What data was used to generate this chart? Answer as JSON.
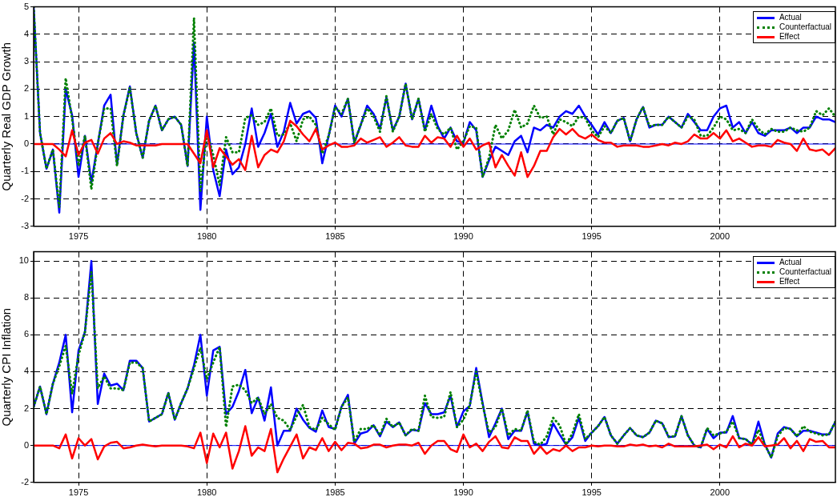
{
  "chart_data": [
    {
      "type": "line",
      "ylabel": "Quarterly Real GDP Growth",
      "xlim": [
        1973.25,
        2004.5
      ],
      "xticks": [
        1975,
        1980,
        1985,
        1990,
        1995,
        2000
      ],
      "ylim": [
        -3,
        5
      ],
      "yticks": [
        -3,
        -2,
        -1,
        0,
        1,
        2,
        3,
        4,
        5
      ],
      "grid": true,
      "legend": "top right",
      "ref_lines": [
        {
          "axis": "y",
          "value": 0,
          "color": "#0000ff"
        }
      ],
      "x": [
        1973.25,
        1973.5,
        1973.75,
        1974,
        1974.25,
        1974.5,
        1974.75,
        1975,
        1975.25,
        1975.5,
        1975.75,
        1976,
        1976.25,
        1976.5,
        1976.75,
        1977,
        1977.25,
        1977.5,
        1977.75,
        1978,
        1978.25,
        1978.5,
        1978.75,
        1979,
        1979.25,
        1979.5,
        1979.75,
        1980,
        1980.25,
        1980.5,
        1980.75,
        1981,
        1981.25,
        1981.5,
        1981.75,
        1982,
        1982.25,
        1982.5,
        1982.75,
        1983,
        1983.25,
        1983.5,
        1983.75,
        1984,
        1984.25,
        1984.5,
        1984.75,
        1985,
        1985.25,
        1985.5,
        1985.75,
        1986,
        1986.25,
        1986.5,
        1986.75,
        1987,
        1987.25,
        1987.5,
        1987.75,
        1988,
        1988.25,
        1988.5,
        1988.75,
        1989,
        1989.25,
        1989.5,
        1989.75,
        1990,
        1990.25,
        1990.5,
        1990.75,
        1991,
        1991.25,
        1991.5,
        1991.75,
        1992,
        1992.25,
        1992.5,
        1992.75,
        1993,
        1993.25,
        1993.5,
        1993.75,
        1994,
        1994.25,
        1994.5,
        1994.75,
        1995,
        1995.25,
        1995.5,
        1995.75,
        1996,
        1996.25,
        1996.5,
        1996.75,
        1997,
        1997.25,
        1997.5,
        1997.75,
        1998,
        1998.25,
        1998.5,
        1998.75,
        1999,
        1999.25,
        1999.5,
        1999.75,
        2000,
        2000.25,
        2000.5,
        2000.75,
        2001,
        2001.25,
        2001.5,
        2001.75,
        2002,
        2002.25,
        2002.5,
        2002.75,
        2003,
        2003.25,
        2003.5,
        2003.75,
        2004,
        2004.25,
        2004.5
      ],
      "series": [
        {
          "name": "Actual",
          "color": "#0000ff",
          "values": [
            5.0,
            0.4,
            -0.9,
            -0.2,
            -2.5,
            2.0,
            1.05,
            -1.2,
            0.3,
            -1.4,
            0.0,
            1.4,
            1.8,
            -0.75,
            1.05,
            2.1,
            0.4,
            -0.5,
            0.85,
            1.4,
            0.5,
            0.9,
            1.0,
            0.7,
            -0.8,
            3.7,
            -2.4,
            1.0,
            -0.95,
            -1.9,
            -0.2,
            -1.1,
            -0.85,
            0.0,
            1.3,
            -0.1,
            0.4,
            1.1,
            -0.1,
            0.45,
            1.5,
            0.75,
            1.1,
            1.2,
            0.95,
            -0.7,
            0.3,
            1.4,
            1.0,
            1.65,
            0.05,
            0.7,
            1.4,
            1.1,
            0.55,
            1.7,
            0.5,
            1.0,
            2.2,
            0.9,
            1.65,
            0.5,
            1.4,
            0.65,
            0.2,
            0.6,
            0.1,
            0.05,
            0.8,
            0.5,
            -1.2,
            -0.6,
            -0.1,
            -0.25,
            -0.4,
            0.1,
            0.3,
            -0.3,
            0.6,
            0.5,
            0.7,
            0.6,
            1.0,
            1.2,
            1.1,
            1.4,
            1.0,
            0.7,
            0.35,
            0.8,
            0.4,
            0.85,
            0.95,
            0.1,
            0.9,
            1.35,
            0.6,
            0.7,
            0.7,
            1.0,
            0.8,
            0.6,
            1.1,
            0.8,
            0.5,
            0.5,
            1.0,
            1.3,
            1.4,
            0.6,
            0.8,
            0.4,
            0.8,
            0.4,
            0.3,
            0.5,
            0.5,
            0.5,
            0.6,
            0.4,
            0.6,
            0.6,
            1.0,
            0.9,
            0.9,
            0.8
          ]
        },
        {
          "name": "Counterfactual",
          "color": "#008000",
          "line_style": "dotted",
          "values": [
            5.0,
            0.4,
            -0.9,
            -0.2,
            -2.3,
            2.4,
            0.9,
            -0.8,
            0.3,
            -1.65,
            0.0,
            1.3,
            1.3,
            -0.8,
            1.05,
            2.05,
            0.4,
            -0.5,
            0.85,
            1.4,
            0.5,
            0.9,
            1.0,
            0.7,
            -0.8,
            4.6,
            -1.7,
            0.4,
            -0.4,
            -1.5,
            0.25,
            -0.3,
            -0.3,
            0.95,
            1.05,
            0.7,
            0.8,
            1.3,
            0.3,
            0.35,
            0.75,
            0.1,
            0.9,
            1.0,
            0.7,
            -0.35,
            0.3,
            1.35,
            1.1,
            1.65,
            0.05,
            0.7,
            1.3,
            1.0,
            0.45,
            1.75,
            0.45,
            1.0,
            2.2,
            0.9,
            1.65,
            0.45,
            1.1,
            0.55,
            0.35,
            0.6,
            -0.2,
            0.1,
            0.65,
            0.6,
            -1.2,
            -0.5,
            0.7,
            0.2,
            0.5,
            1.25,
            0.6,
            0.75,
            1.4,
            0.95,
            1.0,
            0.35,
            0.9,
            0.8,
            0.65,
            1.0,
            0.95,
            0.5,
            0.25,
            0.65,
            0.4,
            0.85,
            0.95,
            0.1,
            0.9,
            1.35,
            0.65,
            0.7,
            0.7,
            1.0,
            0.8,
            0.6,
            1.0,
            0.9,
            0.3,
            0.3,
            0.6,
            1.0,
            0.9,
            0.5,
            0.55,
            0.4,
            0.9,
            0.55,
            0.35,
            0.55,
            0.45,
            0.45,
            0.6,
            0.5,
            0.45,
            0.6,
            1.2,
            1.05,
            1.3,
            1.0
          ]
        },
        {
          "name": "Effect",
          "color": "#ff0000",
          "values": [
            0,
            0,
            0,
            0,
            -0.2,
            -0.45,
            0.5,
            -0.4,
            0.05,
            0.15,
            -0.35,
            0.2,
            0.4,
            0.0,
            0.1,
            0.05,
            -0.05,
            -0.05,
            -0.05,
            -0.05,
            0.0,
            0.0,
            0.0,
            0.0,
            0.0,
            -0.35,
            -0.7,
            0.5,
            -0.85,
            -0.15,
            -0.45,
            -0.75,
            -0.55,
            -0.95,
            0.3,
            -0.85,
            -0.4,
            -0.2,
            -0.3,
            0.1,
            0.85,
            0.65,
            0.35,
            0.1,
            0.55,
            -0.2,
            -0.05,
            0.05,
            -0.1,
            -0.1,
            -0.05,
            0.2,
            0.05,
            0.15,
            0.25,
            -0.1,
            0.05,
            0.25,
            -0.05,
            -0.1,
            -0.1,
            0.3,
            0.05,
            0.25,
            0.2,
            -0.1,
            0.3,
            -0.1,
            0.2,
            -0.2,
            -0.05,
            0.05,
            -0.85,
            -0.4,
            -0.8,
            -1.15,
            -0.3,
            -1.2,
            -0.8,
            -0.25,
            -0.25,
            0.25,
            0.55,
            0.35,
            0.55,
            0.3,
            0.2,
            0.35,
            0.15,
            0.05,
            0.05,
            -0.1,
            -0.05,
            -0.05,
            -0.05,
            -0.1,
            -0.1,
            -0.05,
            0.0,
            -0.05,
            0.05,
            0.0,
            0.1,
            0.35,
            0.2,
            0.2,
            0.4,
            0.2,
            0.5,
            0.1,
            0.2,
            0.05,
            -0.1,
            -0.05,
            -0.05,
            -0.1,
            0.15,
            0.05,
            0.0,
            -0.25,
            0.2,
            -0.2,
            -0.25,
            -0.2,
            -0.4,
            -0.15
          ]
        }
      ]
    },
    {
      "type": "line",
      "ylabel": "Quarterly CPI Inflation",
      "xlim": [
        1973.25,
        2004.5
      ],
      "xticks": [
        1975,
        1980,
        1985,
        1990,
        1995,
        2000
      ],
      "ylim": [
        -2,
        10.5
      ],
      "yticks": [
        -2,
        0,
        2,
        4,
        6,
        8,
        10
      ],
      "grid": true,
      "legend": "top right",
      "ref_lines": [
        {
          "axis": "y",
          "value": 0,
          "color": "#0000ff"
        }
      ],
      "x": [
        1973.25,
        1973.5,
        1973.75,
        1974,
        1974.25,
        1974.5,
        1974.75,
        1975,
        1975.25,
        1975.5,
        1975.75,
        1976,
        1976.25,
        1976.5,
        1976.75,
        1977,
        1977.25,
        1977.5,
        1977.75,
        1978,
        1978.25,
        1978.5,
        1978.75,
        1979,
        1979.25,
        1979.5,
        1979.75,
        1980,
        1980.25,
        1980.5,
        1980.75,
        1981,
        1981.25,
        1981.5,
        1981.75,
        1982,
        1982.25,
        1982.5,
        1982.75,
        1983,
        1983.25,
        1983.5,
        1983.75,
        1984,
        1984.25,
        1984.5,
        1984.75,
        1985,
        1985.25,
        1985.5,
        1985.75,
        1986,
        1986.25,
        1986.5,
        1986.75,
        1987,
        1987.25,
        1987.5,
        1987.75,
        1988,
        1988.25,
        1988.5,
        1988.75,
        1989,
        1989.25,
        1989.5,
        1989.75,
        1990,
        1990.25,
        1990.5,
        1990.75,
        1991,
        1991.25,
        1991.5,
        1991.75,
        1992,
        1992.25,
        1992.5,
        1992.75,
        1993,
        1993.25,
        1993.5,
        1993.75,
        1994,
        1994.25,
        1994.5,
        1994.75,
        1995,
        1995.25,
        1995.5,
        1995.75,
        1996,
        1996.25,
        1996.5,
        1996.75,
        1997,
        1997.25,
        1997.5,
        1997.75,
        1998,
        1998.25,
        1998.5,
        1998.75,
        1999,
        1999.25,
        1999.5,
        1999.75,
        2000,
        2000.25,
        2000.5,
        2000.75,
        2001,
        2001.25,
        2001.5,
        2001.75,
        2002,
        2002.25,
        2002.5,
        2002.75,
        2003,
        2003.25,
        2003.5,
        2003.75,
        2004,
        2004.25,
        2004.5
      ],
      "series": [
        {
          "name": "Actual",
          "color": "#0000ff",
          "values": [
            2.1,
            3.2,
            1.7,
            3.35,
            4.5,
            6.0,
            1.8,
            5.15,
            6.15,
            10.0,
            2.25,
            3.9,
            3.25,
            3.35,
            3.0,
            4.6,
            4.6,
            4.2,
            1.3,
            1.5,
            1.7,
            2.85,
            1.4,
            2.3,
            3.1,
            4.35,
            6.0,
            2.7,
            5.15,
            5.35,
            1.7,
            2.1,
            2.95,
            4.1,
            1.75,
            2.6,
            1.35,
            3.15,
            0.0,
            0.8,
            0.8,
            2.0,
            1.4,
            0.95,
            0.75,
            1.9,
            1.0,
            0.9,
            2.1,
            2.75,
            0.1,
            0.65,
            0.75,
            1.1,
            0.5,
            1.3,
            1.0,
            1.25,
            0.55,
            0.85,
            0.8,
            2.3,
            1.7,
            1.7,
            1.8,
            2.7,
            1.0,
            1.85,
            2.15,
            4.2,
            2.3,
            0.45,
            1.2,
            2.0,
            0.35,
            0.8,
            0.8,
            1.85,
            0.1,
            0.0,
            0.1,
            1.2,
            0.6,
            0.05,
            0.45,
            1.5,
            0.25,
            0.7,
            1.05,
            1.55,
            0.55,
            0.1,
            0.55,
            0.95,
            0.55,
            0.45,
            0.7,
            1.35,
            1.2,
            0.45,
            0.5,
            1.6,
            0.55,
            0.0,
            -0.1,
            0.9,
            0.4,
            0.7,
            0.7,
            1.6,
            0.4,
            0.35,
            0.05,
            1.3,
            0.05,
            -0.65,
            0.65,
            1.0,
            0.9,
            0.5,
            0.8,
            0.8,
            0.7,
            0.6,
            0.6,
            1.3
          ]
        },
        {
          "name": "Counterfactual",
          "color": "#008000",
          "line_style": "dotted",
          "values": [
            2.1,
            3.2,
            1.7,
            3.35,
            4.3,
            5.4,
            2.8,
            4.9,
            6.15,
            9.4,
            3.1,
            3.75,
            3.1,
            3.1,
            3.0,
            4.5,
            4.5,
            4.2,
            1.3,
            1.5,
            1.7,
            2.85,
            1.4,
            2.3,
            3.1,
            4.2,
            5.3,
            3.6,
            4.5,
            5.35,
            1.0,
            3.2,
            3.3,
            3.0,
            2.3,
            2.6,
            1.7,
            2.25,
            1.5,
            1.35,
            0.85,
            1.6,
            2.2,
            1.0,
            0.85,
            1.5,
            1.15,
            0.85,
            2.1,
            2.6,
            0.2,
            0.9,
            0.9,
            1.1,
            0.55,
            1.45,
            1.0,
            1.25,
            0.55,
            0.9,
            0.8,
            2.7,
            1.55,
            1.5,
            1.55,
            2.9,
            1.0,
            1.4,
            2.2,
            4.0,
            2.2,
            0.7,
            1.0,
            2.0,
            0.55,
            0.9,
            0.8,
            1.9,
            0.2,
            0.05,
            0.5,
            1.5,
            1.1,
            0.05,
            0.65,
            1.7,
            0.35,
            0.7,
            1.05,
            1.55,
            0.55,
            0.1,
            0.55,
            0.95,
            0.55,
            0.45,
            0.7,
            1.35,
            1.2,
            0.5,
            0.5,
            1.6,
            0.55,
            0.0,
            -0.1,
            0.95,
            0.55,
            0.65,
            0.75,
            1.3,
            0.4,
            0.35,
            0.05,
            0.85,
            0.05,
            -0.65,
            0.5,
            0.95,
            0.9,
            0.5,
            1.05,
            0.75,
            0.65,
            0.55,
            0.6,
            1.3
          ]
        },
        {
          "name": "Effect",
          "color": "#ff0000",
          "values": [
            0,
            0,
            0,
            0,
            -0.15,
            0.6,
            -0.7,
            0.4,
            0.0,
            0.35,
            -0.75,
            -0.05,
            0.15,
            0.2,
            -0.15,
            -0.1,
            0.0,
            0.05,
            0.0,
            -0.05,
            0.0,
            0.0,
            0.0,
            0.0,
            -0.05,
            -0.15,
            0.7,
            -0.95,
            0.65,
            -0.1,
            0.7,
            -1.25,
            -0.3,
            1.05,
            -0.55,
            -0.1,
            -0.3,
            0.9,
            -1.45,
            -0.7,
            -0.05,
            0.6,
            -0.7,
            -0.1,
            -0.25,
            0.4,
            -0.3,
            0.2,
            -0.25,
            0.15,
            0.1,
            -0.15,
            -0.1,
            0.05,
            0.05,
            -0.1,
            0.0,
            0.05,
            0.05,
            0.0,
            0.15,
            -0.45,
            0.0,
            0.25,
            0.25,
            -0.2,
            -0.35,
            0.6,
            -0.1,
            0.1,
            -0.3,
            0.2,
            0.5,
            -0.1,
            -0.15,
            0.45,
            0.25,
            0.25,
            -0.45,
            -0.05,
            -0.45,
            -0.2,
            -0.3,
            0.0,
            -0.3,
            -0.1,
            -0.1,
            0.0,
            -0.05,
            0.0,
            0.0,
            -0.05,
            -0.05,
            0.05,
            0.0,
            0.05,
            -0.05,
            0.0,
            -0.1,
            0.1,
            -0.05,
            -0.05,
            -0.05,
            -0.05,
            0.0,
            0.05,
            -0.2,
            0.05,
            -0.1,
            0.5,
            -0.1,
            0.1,
            0.0,
            0.45,
            -0.05,
            0.0,
            0.05,
            0.4,
            -0.15,
            0.25,
            -0.3,
            0.35,
            0.2,
            0.25,
            -0.1,
            -0.1
          ]
        }
      ]
    }
  ]
}
